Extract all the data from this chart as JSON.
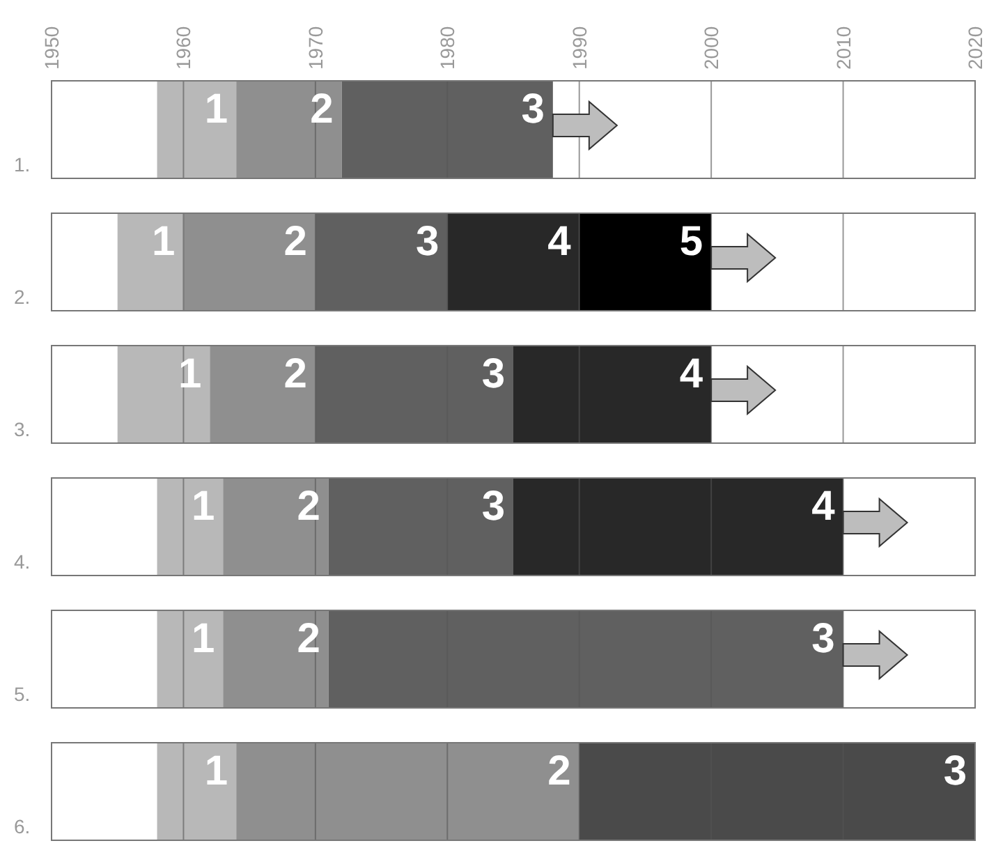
{
  "chart_data": {
    "type": "bar",
    "orientation": "horizontal",
    "categories": [
      "1.",
      "2.",
      "3.",
      "4.",
      "5.",
      "6."
    ],
    "series": [
      {
        "color": "#b8b8b8",
        "base": [
          1958,
          1955,
          1955,
          1958,
          1958,
          1958
        ],
        "values": [
          6,
          5,
          7,
          5,
          5,
          6
        ]
      },
      {
        "color": "#8f8f8f",
        "base": [
          1964,
          1960,
          1962,
          1963,
          1963,
          1964
        ],
        "values": [
          8,
          10,
          8,
          8,
          8,
          26
        ]
      },
      {
        "color": "#606060",
        "colors": [
          null,
          null,
          null,
          null,
          null,
          "#4a4a4a"
        ],
        "base": [
          1972,
          1970,
          1970,
          1971,
          1971,
          1990
        ],
        "values": [
          16,
          10,
          15,
          14,
          39,
          30
        ]
      },
      {
        "color": "#282828",
        "base": [
          null,
          1980,
          1985,
          1985,
          null,
          null
        ],
        "values": [
          null,
          10,
          15,
          25,
          null,
          null
        ]
      },
      {
        "color": "#000000",
        "base": [
          null,
          1990,
          null,
          null,
          null,
          null
        ],
        "values": [
          null,
          10,
          null,
          null,
          null,
          null
        ]
      }
    ],
    "annotations": [
      {
        "text": "1",
        "x": 1964,
        "y": "1."
      },
      {
        "text": "2",
        "x": 1972,
        "y": "1."
      },
      {
        "text": "3",
        "x": 1988,
        "y": "1."
      },
      {
        "text": "1",
        "x": 1960,
        "y": "2."
      },
      {
        "text": "2",
        "x": 1970,
        "y": "2."
      },
      {
        "text": "3",
        "x": 1980,
        "y": "2."
      },
      {
        "text": "4",
        "x": 1990,
        "y": "2."
      },
      {
        "text": "5",
        "x": 2000,
        "y": "2."
      },
      {
        "text": "1",
        "x": 1962,
        "y": "3."
      },
      {
        "text": "2",
        "x": 1970,
        "y": "3."
      },
      {
        "text": "3",
        "x": 1985,
        "y": "3."
      },
      {
        "text": "4",
        "x": 2000,
        "y": "3."
      },
      {
        "text": "1",
        "x": 1963,
        "y": "4."
      },
      {
        "text": "2",
        "x": 1971,
        "y": "4."
      },
      {
        "text": "3",
        "x": 1985,
        "y": "4."
      },
      {
        "text": "4",
        "x": 2010,
        "y": "4."
      },
      {
        "text": "1",
        "x": 1963,
        "y": "5."
      },
      {
        "text": "2",
        "x": 1971,
        "y": "5."
      },
      {
        "text": "3",
        "x": 2010,
        "y": "5."
      },
      {
        "text": "1",
        "x": 1964,
        "y": "6."
      },
      {
        "text": "2",
        "x": 1990,
        "y": "6."
      },
      {
        "text": "3",
        "x": 2020,
        "y": "6."
      }
    ],
    "xlim": [
      1950,
      2020
    ],
    "xticks": [
      1950,
      1960,
      1970,
      1980,
      1990,
      2000,
      2010,
      2020
    ],
    "grid": "x"
  }
}
